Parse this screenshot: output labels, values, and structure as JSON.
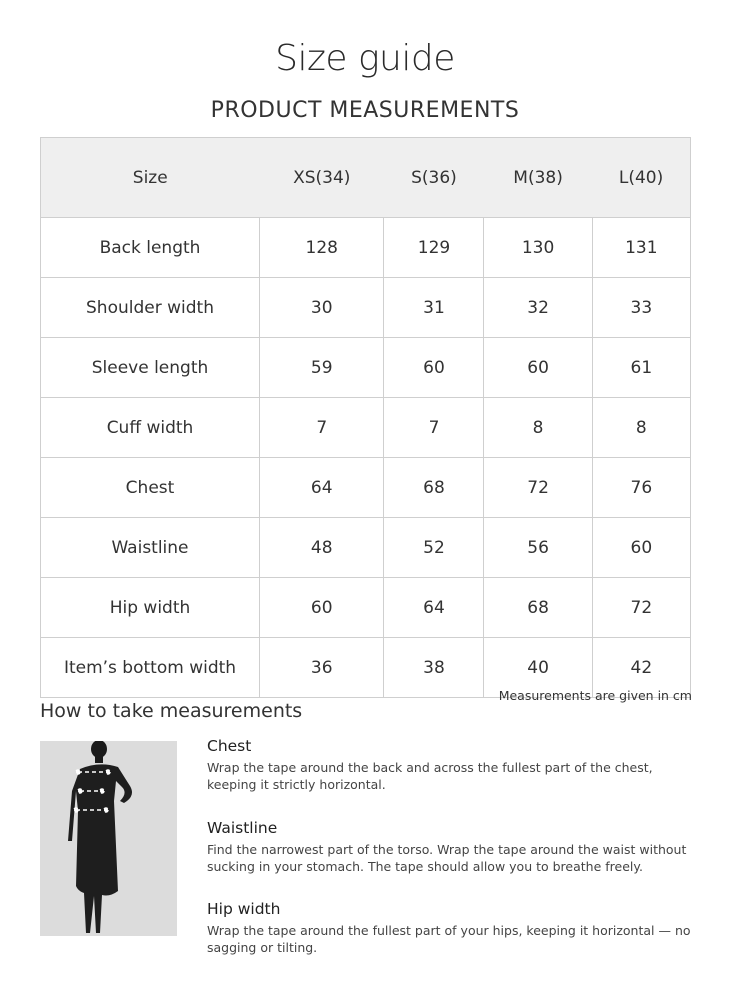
{
  "title": "Size guide",
  "subtitle": "PRODUCT MEASUREMENTS",
  "table": {
    "headers": [
      "Size",
      "XS(34)",
      "S(36)",
      "M(38)",
      "L(40)"
    ],
    "rows": [
      [
        "Back length",
        "128",
        "129",
        "130",
        "131"
      ],
      [
        "Shoulder width",
        "30",
        "31",
        "32",
        "33"
      ],
      [
        "Sleeve length",
        "59",
        "60",
        "60",
        "61"
      ],
      [
        "Cuff width",
        "7",
        "7",
        "8",
        "8"
      ],
      [
        "Chest",
        "64",
        "68",
        "72",
        "76"
      ],
      [
        "Waistline",
        "48",
        "52",
        "56",
        "60"
      ],
      [
        "Hip width",
        "60",
        "64",
        "68",
        "72"
      ],
      [
        "Item’s bottom width",
        "36",
        "38",
        "40",
        "42"
      ]
    ]
  },
  "unit_note": "Measurements are given in cm",
  "howto": {
    "heading": "How to take measurements",
    "items": [
      {
        "title": "Chest",
        "text": "Wrap the tape around the back and across the fullest part of the chest, keeping it strictly horizontal."
      },
      {
        "title": "Waistline",
        "text": "Find the narrowest part of the torso. Wrap the tape around the waist without sucking in your stomach. The tape should allow you to breathe freely."
      },
      {
        "title": "Hip width",
        "text": "Wrap the tape around the fullest part of your hips, keeping it horizontal — no sagging or tilting."
      }
    ]
  }
}
